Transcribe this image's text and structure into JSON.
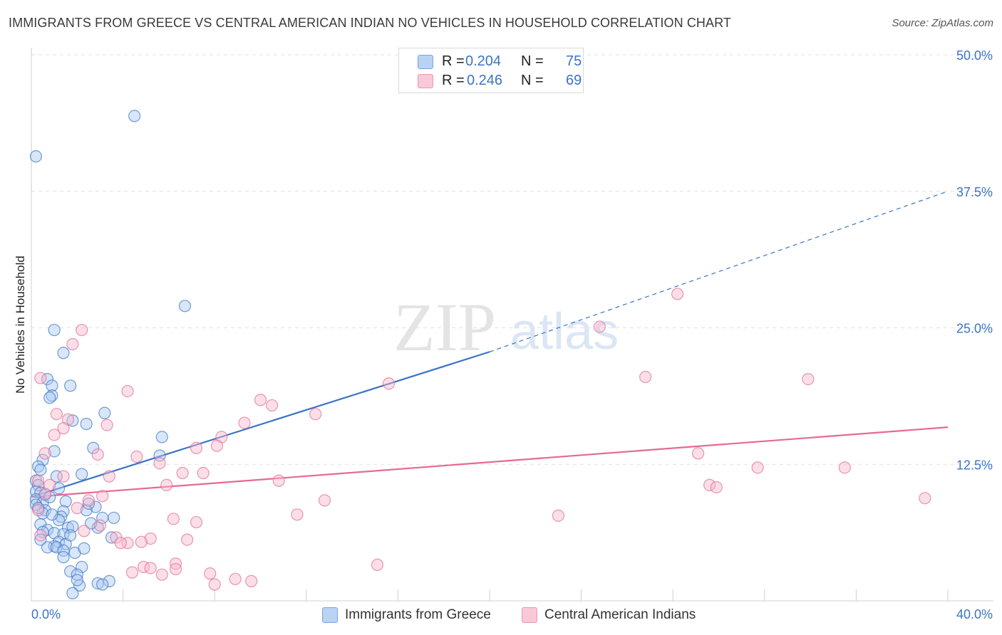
{
  "title": "IMMIGRANTS FROM GREECE VS CENTRAL AMERICAN INDIAN NO VEHICLES IN HOUSEHOLD CORRELATION CHART",
  "source": "Source: ZipAtlas.com",
  "watermark": {
    "zip": "ZIP",
    "atlas": "atlas"
  },
  "legend": {
    "rows": [
      {
        "r_label": "R =",
        "r_value": "0.204",
        "n_label": "N =",
        "n_value": "75",
        "color": "#a9c8f0"
      },
      {
        "r_label": "R =",
        "r_value": "0.246",
        "n_label": "N =",
        "n_value": "69",
        "color": "#f7b8cb"
      }
    ]
  },
  "bottom_legend": {
    "items": [
      {
        "label": "Immigrants from Greece",
        "color": "#a9c8f0"
      },
      {
        "label": "Central American Indians",
        "color": "#f7b8cb"
      }
    ]
  },
  "chart_data": {
    "type": "scatter",
    "xlabel": "",
    "ylabel": "No Vehicles in Household",
    "xlim": [
      0,
      40
    ],
    "ylim": [
      0,
      50
    ],
    "x_tick_labels": [
      "0.0%",
      "40.0%"
    ],
    "y_tick_labels": [
      "12.5%",
      "25.0%",
      "37.5%",
      "50.0%"
    ],
    "y_ticks": [
      12.5,
      25,
      37.5,
      50
    ],
    "grid": true,
    "series": [
      {
        "name": "Immigrants from Greece",
        "color": "#3b73c6",
        "fill": "#a9c8f0",
        "R": 0.204,
        "N": 75,
        "trend": {
          "x": [
            0,
            20
          ],
          "y": [
            9.5,
            22.8
          ],
          "dashed_to": [
            40,
            37.5
          ]
        },
        "points": [
          [
            0.2,
            40.7
          ],
          [
            4.5,
            44.4
          ],
          [
            6.7,
            27.0
          ],
          [
            1.0,
            24.8
          ],
          [
            1.4,
            22.7
          ],
          [
            0.7,
            20.3
          ],
          [
            0.9,
            19.7
          ],
          [
            1.7,
            19.7
          ],
          [
            0.9,
            18.8
          ],
          [
            0.8,
            18.6
          ],
          [
            3.2,
            17.2
          ],
          [
            2.4,
            16.2
          ],
          [
            1.8,
            16.5
          ],
          [
            5.7,
            15.0
          ],
          [
            2.7,
            14.0
          ],
          [
            1.0,
            13.7
          ],
          [
            5.6,
            13.3
          ],
          [
            0.5,
            12.9
          ],
          [
            0.3,
            12.3
          ],
          [
            0.4,
            12.0
          ],
          [
            1.1,
            11.4
          ],
          [
            2.2,
            11.6
          ],
          [
            0.2,
            11.0
          ],
          [
            0.3,
            10.6
          ],
          [
            0.2,
            10.0
          ],
          [
            0.4,
            9.9
          ],
          [
            0.6,
            9.7
          ],
          [
            0.2,
            9.3
          ],
          [
            0.5,
            9.0
          ],
          [
            1.5,
            9.1
          ],
          [
            0.2,
            8.8
          ],
          [
            2.8,
            8.6
          ],
          [
            2.4,
            8.3
          ],
          [
            0.6,
            8.3
          ],
          [
            1.4,
            8.2
          ],
          [
            0.5,
            8.0
          ],
          [
            1.3,
            7.7
          ],
          [
            1.2,
            7.4
          ],
          [
            3.1,
            7.6
          ],
          [
            3.6,
            7.6
          ],
          [
            0.4,
            7.0
          ],
          [
            1.6,
            6.7
          ],
          [
            2.9,
            6.7
          ],
          [
            0.7,
            6.5
          ],
          [
            1.8,
            6.8
          ],
          [
            0.5,
            6.3
          ],
          [
            1.0,
            6.2
          ],
          [
            1.4,
            6.1
          ],
          [
            3.5,
            5.8
          ],
          [
            1.2,
            5.4
          ],
          [
            1.5,
            5.2
          ],
          [
            1.0,
            5.0
          ],
          [
            0.7,
            4.9
          ],
          [
            1.1,
            4.9
          ],
          [
            1.4,
            4.6
          ],
          [
            1.9,
            4.4
          ],
          [
            1.4,
            4.0
          ],
          [
            2.2,
            3.1
          ],
          [
            1.7,
            2.7
          ],
          [
            2.0,
            2.4
          ],
          [
            3.4,
            1.8
          ],
          [
            2.9,
            1.6
          ],
          [
            2.1,
            1.4
          ],
          [
            3.1,
            1.5
          ],
          [
            1.8,
            0.7
          ],
          [
            2.0,
            1.9
          ],
          [
            0.8,
            9.5
          ],
          [
            1.2,
            10.3
          ],
          [
            2.6,
            7.1
          ],
          [
            0.3,
            8.5
          ],
          [
            0.9,
            7.9
          ],
          [
            1.7,
            6.0
          ],
          [
            2.5,
            8.9
          ],
          [
            0.4,
            5.6
          ],
          [
            2.3,
            4.8
          ]
        ]
      },
      {
        "name": "Central American Indians",
        "color": "#e46a93",
        "fill": "#f7b8cb",
        "R": 0.246,
        "N": 69,
        "trend": {
          "x": [
            0,
            40
          ],
          "y": [
            9.5,
            15.9
          ]
        },
        "points": [
          [
            0.4,
            20.4
          ],
          [
            2.2,
            24.8
          ],
          [
            1.8,
            23.5
          ],
          [
            4.2,
            19.2
          ],
          [
            15.6,
            19.9
          ],
          [
            28.2,
            28.1
          ],
          [
            24.8,
            25.1
          ],
          [
            26.8,
            20.5
          ],
          [
            33.9,
            20.3
          ],
          [
            10.0,
            18.4
          ],
          [
            10.5,
            17.9
          ],
          [
            12.4,
            17.1
          ],
          [
            1.1,
            17.1
          ],
          [
            1.6,
            16.6
          ],
          [
            3.3,
            16.1
          ],
          [
            1.4,
            15.8
          ],
          [
            9.3,
            16.3
          ],
          [
            1.0,
            15.2
          ],
          [
            8.3,
            15.0
          ],
          [
            8.1,
            14.2
          ],
          [
            7.2,
            14.0
          ],
          [
            0.6,
            13.5
          ],
          [
            2.9,
            13.4
          ],
          [
            4.6,
            13.2
          ],
          [
            29.1,
            13.5
          ],
          [
            5.6,
            12.6
          ],
          [
            31.7,
            12.2
          ],
          [
            35.5,
            12.2
          ],
          [
            6.6,
            11.7
          ],
          [
            7.5,
            11.7
          ],
          [
            3.4,
            11.4
          ],
          [
            1.4,
            11.4
          ],
          [
            10.8,
            11.0
          ],
          [
            0.3,
            11.0
          ],
          [
            0.8,
            10.6
          ],
          [
            5.9,
            10.6
          ],
          [
            29.6,
            10.6
          ],
          [
            29.9,
            10.4
          ],
          [
            0.6,
            9.8
          ],
          [
            3.1,
            9.6
          ],
          [
            12.8,
            9.2
          ],
          [
            2.5,
            9.2
          ],
          [
            39.0,
            9.4
          ],
          [
            0.3,
            8.3
          ],
          [
            2.0,
            8.5
          ],
          [
            11.6,
            7.9
          ],
          [
            23.0,
            7.8
          ],
          [
            6.2,
            7.5
          ],
          [
            7.2,
            7.2
          ],
          [
            3.0,
            6.9
          ],
          [
            2.3,
            6.4
          ],
          [
            0.4,
            6.0
          ],
          [
            3.7,
            5.8
          ],
          [
            5.2,
            5.7
          ],
          [
            6.8,
            5.6
          ],
          [
            4.8,
            5.4
          ],
          [
            4.2,
            5.3
          ],
          [
            3.9,
            5.3
          ],
          [
            6.3,
            3.4
          ],
          [
            15.1,
            3.3
          ],
          [
            4.9,
            3.1
          ],
          [
            5.2,
            3.0
          ],
          [
            6.3,
            2.9
          ],
          [
            5.7,
            2.4
          ],
          [
            7.8,
            2.5
          ],
          [
            4.4,
            2.6
          ],
          [
            8.9,
            2.0
          ],
          [
            9.6,
            1.8
          ],
          [
            8.0,
            1.5
          ]
        ]
      }
    ]
  }
}
